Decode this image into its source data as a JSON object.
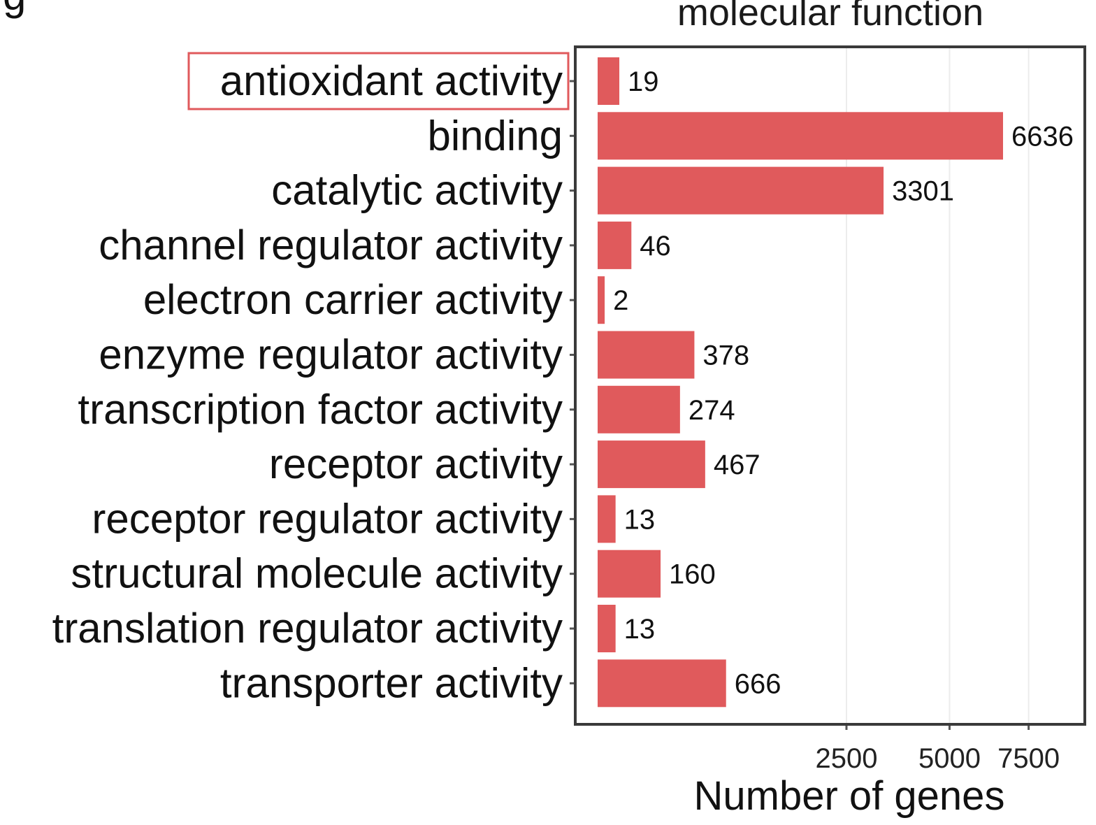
{
  "panel_letter": "g",
  "chart_data": {
    "type": "bar",
    "orientation": "horizontal",
    "title": "molecular function",
    "xlabel": "Number of genes",
    "ylabel": "",
    "x_scale": "sqrt",
    "x_ticks": [
      2500,
      5000,
      7500
    ],
    "x_tick_labels": [
      "2500",
      "5000",
      "7500"
    ],
    "xlim": [
      0,
      9000
    ],
    "grid": true,
    "legend": "none",
    "bar_color": "#e05a5c",
    "highlight_color": "#e05a5c",
    "highlighted_category": "antioxidant activity",
    "categories": [
      "antioxidant activity",
      "binding",
      "catalytic activity",
      "channel regulator activity",
      "electron carrier activity",
      "enzyme regulator activity",
      "transcription factor activity",
      "receptor activity",
      "receptor regulator activity",
      "structural molecule activity",
      "translation regulator activity",
      "transporter activity"
    ],
    "values": [
      19,
      6636,
      3301,
      46,
      2,
      378,
      274,
      467,
      13,
      160,
      13,
      666
    ],
    "value_labels": [
      "19",
      "6636",
      "3301",
      "46",
      "2",
      "378",
      "274",
      "467",
      "13",
      "160",
      "13",
      "666"
    ]
  }
}
